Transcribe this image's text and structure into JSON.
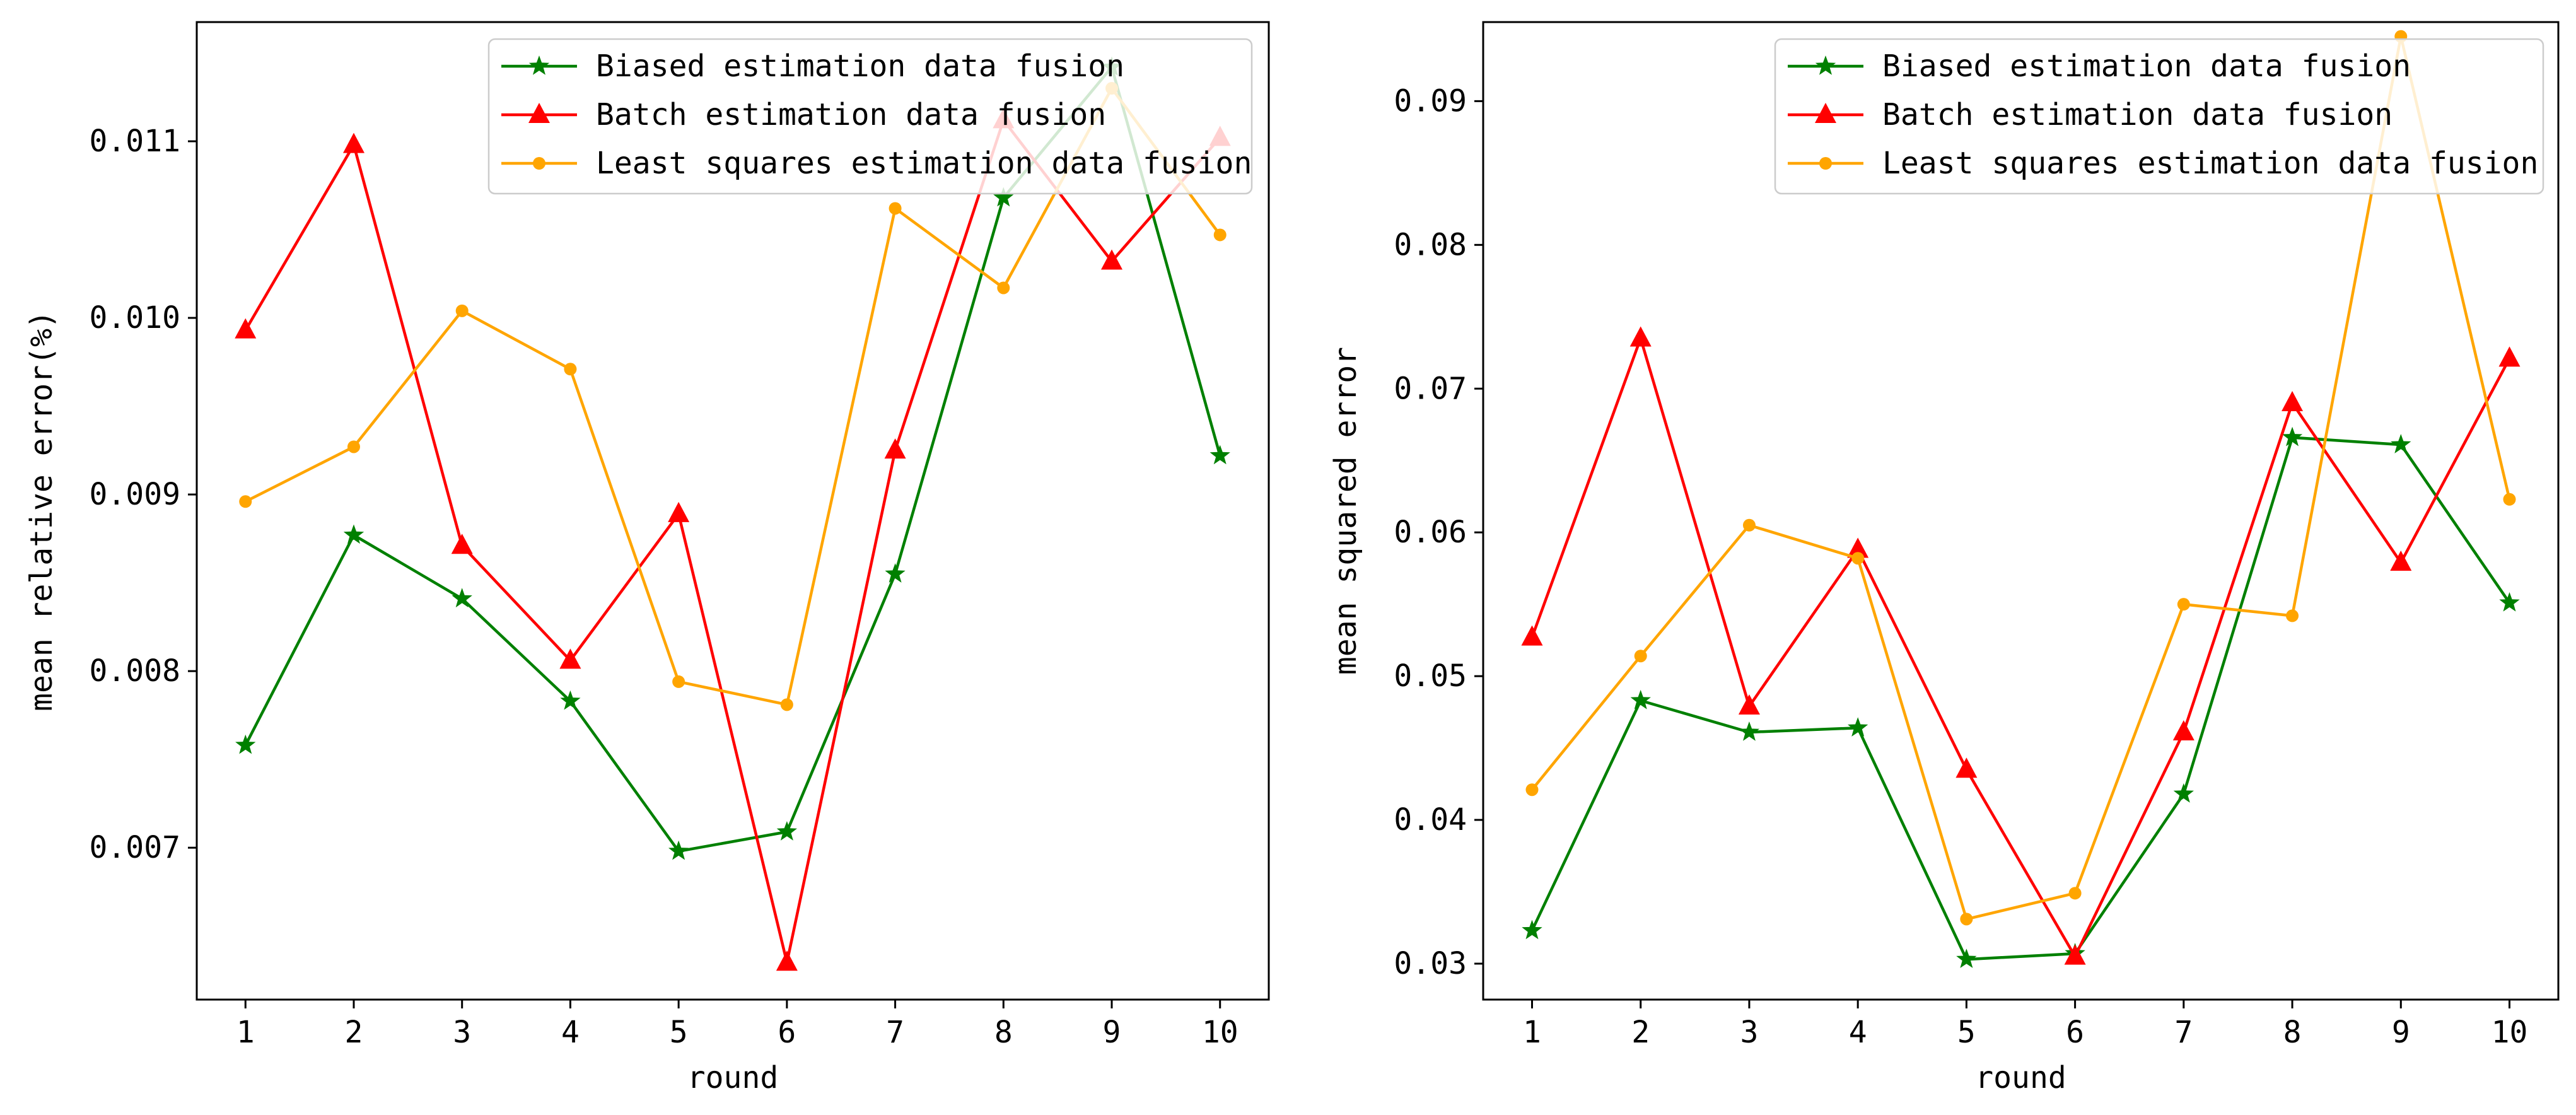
{
  "chart_data": [
    {
      "type": "line",
      "title": "",
      "xlabel": "round",
      "ylabel": "mean relative error(%)",
      "x": [
        1,
        2,
        3,
        4,
        5,
        6,
        7,
        8,
        9,
        10
      ],
      "xticks": [
        "1",
        "2",
        "3",
        "4",
        "5",
        "6",
        "7",
        "8",
        "9",
        "10"
      ],
      "xlim": [
        0.55,
        10.45
      ],
      "ylim": [
        0.00614,
        0.011675
      ],
      "yticks": [
        0.007,
        0.008,
        0.009,
        0.01,
        0.011
      ],
      "ytick_labels": [
        "0.007",
        "0.008",
        "0.009",
        "0.010",
        "0.011"
      ],
      "grid": false,
      "legend_position": "top-right",
      "series": [
        {
          "name": "Biased estimation data fusion",
          "color": "#008000",
          "marker": "star",
          "values": [
            0.00758,
            0.00877,
            0.00841,
            0.00783,
            0.00698,
            0.00709,
            0.00855,
            0.01068,
            0.01142,
            0.00922
          ]
        },
        {
          "name": "Batch estimation data fusion",
          "color": "#ff0000",
          "marker": "triangle",
          "values": [
            0.00993,
            0.01098,
            0.00871,
            0.00806,
            0.00889,
            0.00635,
            0.00925,
            0.01112,
            0.01032,
            0.01102
          ]
        },
        {
          "name": "Least squares estimation data fusion",
          "color": "#ffa500",
          "marker": "circle",
          "values": [
            0.00896,
            0.00927,
            0.01004,
            0.00971,
            0.00794,
            0.00781,
            0.01062,
            0.01017,
            0.0113,
            0.01047
          ]
        }
      ]
    },
    {
      "type": "line",
      "title": "",
      "xlabel": "round",
      "ylabel": "mean squared error",
      "x": [
        1,
        2,
        3,
        4,
        5,
        6,
        7,
        8,
        9,
        10
      ],
      "xticks": [
        "1",
        "2",
        "3",
        "4",
        "5",
        "6",
        "7",
        "8",
        "9",
        "10"
      ],
      "xlim": [
        0.55,
        10.45
      ],
      "ylim": [
        0.0275,
        0.0955
      ],
      "yticks": [
        0.03,
        0.04,
        0.05,
        0.06,
        0.07,
        0.08,
        0.09
      ],
      "ytick_labels": [
        "0.03",
        "0.04",
        "0.05",
        "0.06",
        "0.07",
        "0.08",
        "0.09"
      ],
      "grid": false,
      "legend_position": "top-right",
      "series": [
        {
          "name": "Biased estimation data fusion",
          "color": "#008000",
          "marker": "star",
          "values": [
            0.0323,
            0.0483,
            0.0461,
            0.0464,
            0.0303,
            0.0307,
            0.0418,
            0.0666,
            0.0661,
            0.0551
          ]
        },
        {
          "name": "Batch estimation data fusion",
          "color": "#ff0000",
          "marker": "triangle",
          "values": [
            0.0527,
            0.0735,
            0.0479,
            0.0588,
            0.0435,
            0.0305,
            0.0461,
            0.069,
            0.0579,
            0.0721
          ]
        },
        {
          "name": "Least squares estimation data fusion",
          "color": "#ffa500",
          "marker": "circle",
          "values": [
            0.0421,
            0.0514,
            0.0605,
            0.0582,
            0.0331,
            0.0349,
            0.055,
            0.0542,
            0.0945,
            0.0623
          ]
        }
      ]
    }
  ]
}
